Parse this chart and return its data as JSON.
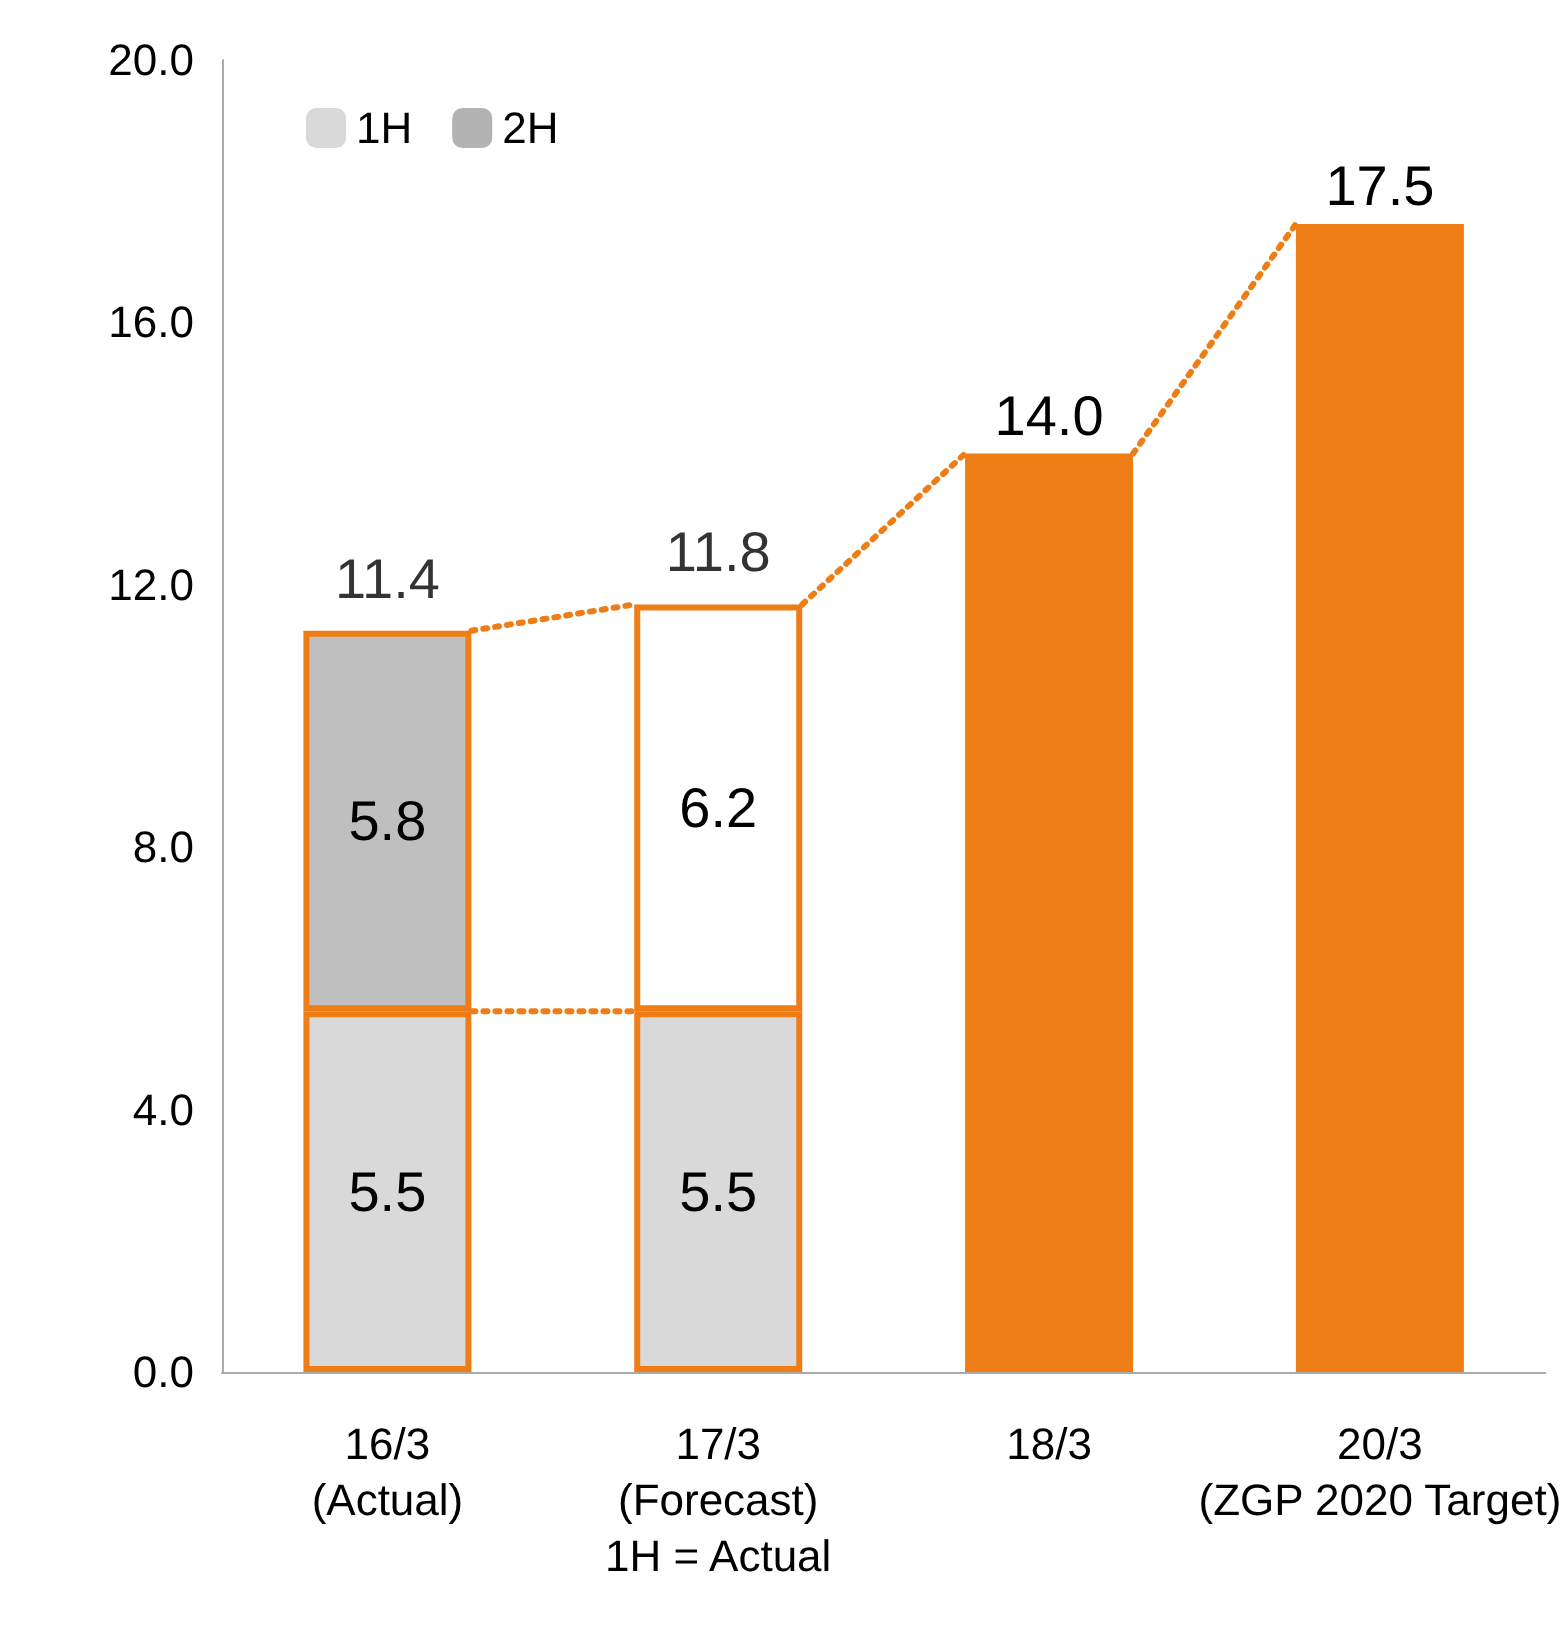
{
  "chart_data": {
    "type": "bar",
    "stacked": true,
    "categories": [
      "16/3\n(Actual)",
      "17/3\n(Forecast)\n1H = Actual",
      "18/3",
      "20/3\n(ZGP 2020 Target)"
    ],
    "series": [
      {
        "name": "1H",
        "color": "#d9d9d9",
        "values": [
          5.5,
          5.5,
          null,
          null
        ],
        "value_labels": [
          "5.5",
          "5.5",
          null,
          null
        ]
      },
      {
        "name": "2H",
        "color": "#b3b3b3",
        "colors": [
          "#bfbfbf",
          "#ffffff",
          null,
          null
        ],
        "values": [
          5.8,
          6.2,
          null,
          null
        ],
        "value_labels": [
          "5.8",
          "6.2",
          null,
          null
        ]
      },
      {
        "color": "#ef7d15",
        "values": [
          null,
          null,
          14.0,
          17.5
        ],
        "value_labels": [
          null,
          null,
          "14.0",
          "17.5"
        ]
      }
    ],
    "totals": [
      "11.4",
      "11.8",
      null,
      null
    ],
    "ylim": [
      0,
      20
    ],
    "yticks": [
      {
        "value": 0,
        "label": "0.0"
      },
      {
        "value": 4,
        "label": "4.0"
      },
      {
        "value": 8,
        "label": "8.0"
      },
      {
        "value": 12,
        "label": "12.0"
      },
      {
        "value": 16,
        "label": "16.0"
      },
      {
        "value": 20,
        "label": "20.0"
      }
    ],
    "grid": false,
    "legend": "top left"
  }
}
